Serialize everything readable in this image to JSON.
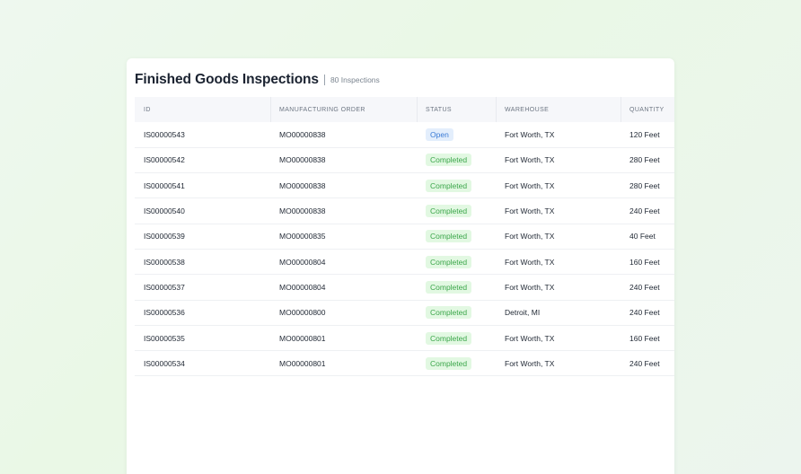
{
  "header": {
    "title": "Finished Goods Inspections",
    "count": "80 Inspections"
  },
  "table": {
    "columns": [
      "ID",
      "MANUFACTURING ORDER",
      "STATUS",
      "WAREHOUSE",
      "QUANTITY"
    ],
    "rows": [
      {
        "id": "IS00000543",
        "mo": "MO00000838",
        "status": "Open",
        "warehouse": "Fort Worth, TX",
        "quantity": "120 Feet"
      },
      {
        "id": "IS00000542",
        "mo": "MO00000838",
        "status": "Completed",
        "warehouse": "Fort Worth, TX",
        "quantity": "280 Feet"
      },
      {
        "id": "IS00000541",
        "mo": "MO00000838",
        "status": "Completed",
        "warehouse": "Fort Worth, TX",
        "quantity": "280 Feet"
      },
      {
        "id": "IS00000540",
        "mo": "MO00000838",
        "status": "Completed",
        "warehouse": "Fort Worth, TX",
        "quantity": "240 Feet"
      },
      {
        "id": "IS00000539",
        "mo": "MO00000835",
        "status": "Completed",
        "warehouse": "Fort Worth, TX",
        "quantity": "40 Feet"
      },
      {
        "id": "IS00000538",
        "mo": "MO00000804",
        "status": "Completed",
        "warehouse": "Fort Worth, TX",
        "quantity": "160 Feet"
      },
      {
        "id": "IS00000537",
        "mo": "MO00000804",
        "status": "Completed",
        "warehouse": "Fort Worth, TX",
        "quantity": "240 Feet"
      },
      {
        "id": "IS00000536",
        "mo": "MO00000800",
        "status": "Completed",
        "warehouse": "Detroit, MI",
        "quantity": "240 Feet"
      },
      {
        "id": "IS00000535",
        "mo": "MO00000801",
        "status": "Completed",
        "warehouse": "Fort Worth, TX",
        "quantity": "160 Feet"
      },
      {
        "id": "IS00000534",
        "mo": "MO00000801",
        "status": "Completed",
        "warehouse": "Fort Worth, TX",
        "quantity": "240 Feet"
      }
    ]
  },
  "colors": {
    "open_bg": "#e3eefc",
    "open_text": "#3a7bd5",
    "completed_bg": "#e2f8e2",
    "completed_text": "#3ba64a"
  }
}
